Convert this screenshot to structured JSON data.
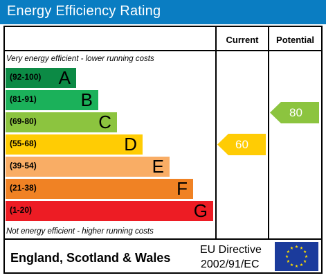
{
  "header": {
    "title": "Energy Efficiency Rating",
    "color": "#0a7dc2"
  },
  "columns": {
    "current": "Current",
    "potential": "Potential"
  },
  "notes": {
    "top": "Very energy efficient - lower running costs",
    "bottom": "Not energy efficient - higher running costs"
  },
  "bands": [
    {
      "range": "(92-100)",
      "letter": "A",
      "color": "#0c8a45"
    },
    {
      "range": "(81-91)",
      "letter": "B",
      "color": "#1bb15a"
    },
    {
      "range": "(69-80)",
      "letter": "C",
      "color": "#8cc43f"
    },
    {
      "range": "(55-68)",
      "letter": "D",
      "color": "#ffcc04"
    },
    {
      "range": "(39-54)",
      "letter": "E",
      "color": "#f9ad65"
    },
    {
      "range": "(21-38)",
      "letter": "F",
      "color": "#f08224"
    },
    {
      "range": "(1-20)",
      "letter": "G",
      "color": "#ed1c24"
    }
  ],
  "ratings": {
    "current": {
      "value": "60",
      "band": "D",
      "color": "#ffcc04"
    },
    "potential": {
      "value": "80",
      "band": "C",
      "color": "#8cc43f"
    }
  },
  "footer": {
    "country": "England, Scotland & Wales",
    "directive_line1": "EU Directive",
    "directive_line2": "2002/91/EC",
    "flag_color": "#1b3b9c",
    "star_color": "#ffde00"
  }
}
